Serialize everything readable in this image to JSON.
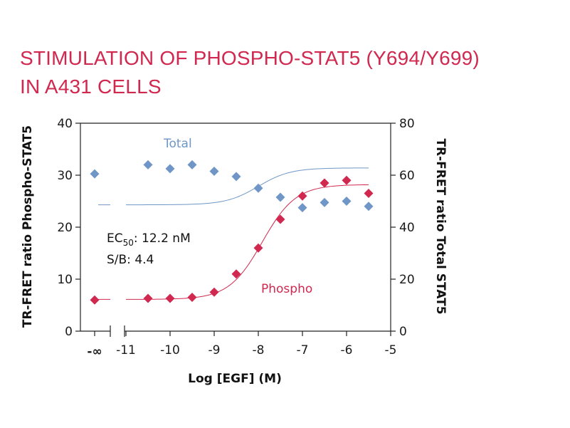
{
  "title_lines": [
    "STIMULATION OF PHOSPHO-STAT5 (Y694/Y699)",
    "IN A431 CELLS"
  ],
  "colors": {
    "title": "#d0284f",
    "phospho": "#d0284f",
    "total": "#6f96c6",
    "axis": "#222222"
  },
  "chart_data": {
    "type": "scatter",
    "title": "STIMULATION OF PHOSPHO-STAT5 (Y694/Y699) IN A431 CELLS",
    "xlabel": "Log [EGF] (M)",
    "ylabel_left": "TR-FRET ratio Phospho-STAT5",
    "ylabel_right": "TR-FRET ratio Total STAT5",
    "xlim": [
      -11,
      -5
    ],
    "ylim_left": [
      0,
      40
    ],
    "ylim_right": [
      0,
      80
    ],
    "x_ticks": [
      -11,
      -10,
      -9,
      -8,
      -7,
      -6,
      -5
    ],
    "x_tick_labels": [
      "-11",
      "-10",
      "-9",
      "-8",
      "-7",
      "-6",
      "-5"
    ],
    "zero_label": "-∞",
    "y_ticks_left": [
      0,
      10,
      20,
      30,
      40
    ],
    "y_ticks_right": [
      0,
      20,
      40,
      60,
      80
    ],
    "series": [
      {
        "name": "Phospho",
        "axis": "left",
        "marker": "diamond",
        "zero_value": 6.0,
        "x": [
          -10.5,
          -10.0,
          -9.5,
          -9.0,
          -8.5,
          -8.0,
          -7.5,
          -7.0,
          -6.5,
          -6.0,
          -5.5
        ],
        "y": [
          6.3,
          6.3,
          6.5,
          7.5,
          11.0,
          16.0,
          21.5,
          26.0,
          28.5,
          29.0,
          26.5
        ],
        "fit": {
          "bottom": 6.1,
          "top": 28.2,
          "logEC50": -7.91,
          "hill": 1.15
        }
      },
      {
        "name": "Total",
        "axis": "right",
        "marker": "diamond",
        "zero_value": 60.5,
        "x": [
          -10.5,
          -10.0,
          -9.5,
          -9.0,
          -8.5,
          -8.0,
          -7.5,
          -7.0,
          -6.5,
          -6.0,
          -5.5
        ],
        "y": [
          64.0,
          62.5,
          64.0,
          61.5,
          59.5,
          55.0,
          51.5,
          47.5,
          49.5,
          50.0,
          48.0
        ],
        "fit": {
          "top": 62.8,
          "bottom": 48.6,
          "logEC50": -8.0,
          "hill": 1.2
        }
      }
    ],
    "annotations": {
      "ec50_prefix": "EC",
      "ec50_sub": "50",
      "ec50_value": ": 12.2 nM",
      "sb": "S/B: 4.4"
    }
  }
}
